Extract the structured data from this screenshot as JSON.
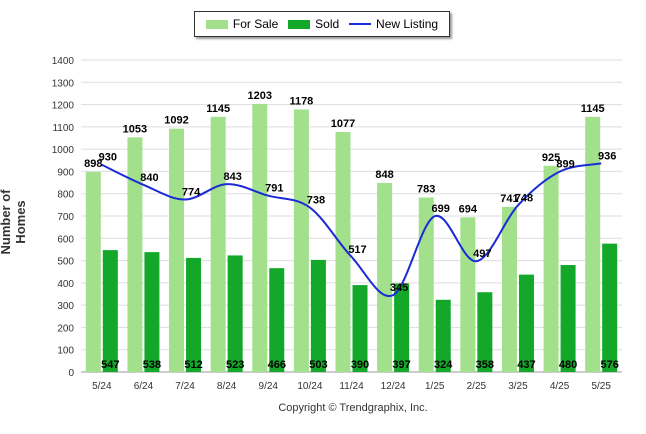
{
  "chart_data": {
    "type": "bar",
    "categories": [
      "5/24",
      "6/24",
      "7/24",
      "8/24",
      "9/24",
      "10/24",
      "11/24",
      "12/24",
      "1/25",
      "2/25",
      "3/25",
      "4/25",
      "5/25"
    ],
    "series": [
      {
        "name": "For Sale",
        "kind": "bar",
        "color": "#a3e08c",
        "values": [
          898,
          1053,
          1092,
          1145,
          1203,
          1178,
          1077,
          848,
          783,
          694,
          741,
          925,
          1145
        ]
      },
      {
        "name": "Sold",
        "kind": "bar",
        "color": "#13a82a",
        "values": [
          547,
          538,
          512,
          523,
          466,
          503,
          390,
          397,
          324,
          358,
          437,
          480,
          576
        ]
      },
      {
        "name": "New Listing",
        "kind": "line",
        "color": "#1b2bd6",
        "values": [
          930,
          840,
          774,
          843,
          791,
          738,
          517,
          345,
          699,
          497,
          748,
          899,
          936
        ]
      }
    ],
    "ylabel": "Number of Homes",
    "ylim": [
      0,
      1400
    ],
    "yticks": [
      0,
      100,
      200,
      300,
      400,
      500,
      600,
      700,
      800,
      900,
      1000,
      1100,
      1200,
      1300,
      1400
    ],
    "grid": true,
    "legend_position": "top-center"
  },
  "footer": {
    "copyright": "Copyright © Trendgraphix, Inc."
  }
}
